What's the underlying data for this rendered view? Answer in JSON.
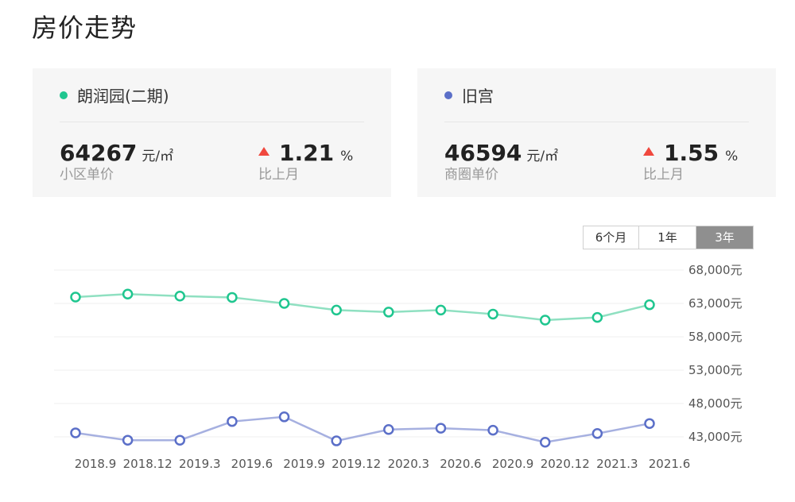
{
  "header": {
    "title": "房价走势"
  },
  "cards": [
    {
      "name": "朗润园(二期)",
      "dot_color": "#1fc68f",
      "price": "64267",
      "price_unit": "元/㎡",
      "price_label": "小区单价",
      "change": "1.21",
      "change_unit": "%",
      "change_label": "比上月"
    },
    {
      "name": "旧宫",
      "dot_color": "#5b6fc8",
      "price": "46594",
      "price_unit": "元/㎡",
      "price_label": "商圈单价",
      "change": "1.55",
      "change_unit": "%",
      "change_label": "比上月"
    }
  ],
  "range_tabs": {
    "items": [
      "6个月",
      "1年",
      "3年"
    ],
    "active": "3年"
  },
  "chart_data": {
    "type": "line",
    "x": [
      "2018.9",
      "2018.12",
      "2019.3",
      "2019.6",
      "2019.9",
      "2019.12",
      "2020.3",
      "2020.6",
      "2020.9",
      "2020.12",
      "2021.3",
      "2021.6"
    ],
    "x_tick_labels": [
      "2018.9",
      "2018.12",
      "2019.3",
      "2019.6",
      "2019.9",
      "2019.12",
      "2020.3",
      "2020.6",
      "2020.9",
      "2020.12",
      "2021.3",
      "2021.6"
    ],
    "y_tick_labels": [
      "68,000元",
      "63,000元",
      "58,000元",
      "53,000元",
      "48,000元",
      "43,000元"
    ],
    "y_ticks": [
      68000,
      63000,
      58000,
      53000,
      48000,
      43000
    ],
    "ylim": [
      43000,
      68000
    ],
    "series": [
      {
        "name": "朗润园(二期)",
        "color": "#1fc68f",
        "line_color": "#8fe0c1",
        "values": [
          63950,
          64400,
          64100,
          63900,
          63000,
          62000,
          61700,
          62000,
          61400,
          60500,
          60900,
          62800
        ]
      },
      {
        "name": "旧宫",
        "color": "#5b6fc8",
        "line_color": "#a6b0e0",
        "values": [
          43600,
          42500,
          42500,
          45300,
          46000,
          42400,
          44100,
          44300,
          44000,
          42200,
          43500,
          45000
        ]
      }
    ],
    "grid": true,
    "legend": "none"
  }
}
